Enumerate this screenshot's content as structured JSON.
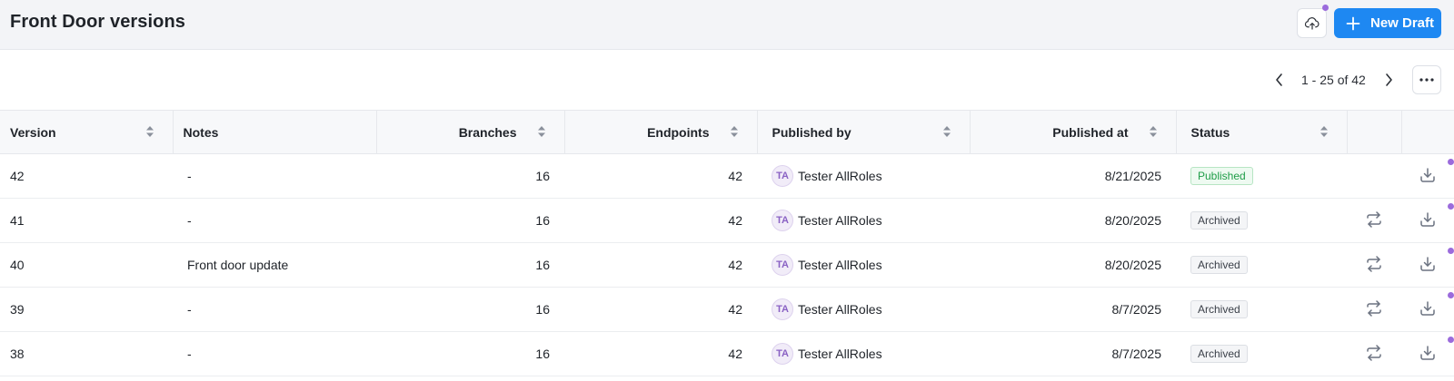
{
  "header": {
    "title": "Front Door versions",
    "new_draft_label": "New Draft",
    "upload_icon": "cloud-upload-icon",
    "accent_color": "#1e88f2",
    "notification_dot_color": "#9b6bdc"
  },
  "pagination": {
    "range_text": "1 - 25 of 42",
    "prev_icon": "chevron-left-icon",
    "next_icon": "chevron-right-icon",
    "more_icon": "more-horizontal-icon"
  },
  "table": {
    "columns": [
      "Version",
      "Notes",
      "Branches",
      "Endpoints",
      "Published by",
      "Published at",
      "Status"
    ],
    "rows": [
      {
        "version": "42",
        "notes": "-",
        "branches": "16",
        "endpoints": "42",
        "initials": "TA",
        "publisher": "Tester AllRoles",
        "published_at": "8/21/2025",
        "status": "Published"
      },
      {
        "version": "41",
        "notes": "-",
        "branches": "16",
        "endpoints": "42",
        "initials": "TA",
        "publisher": "Tester AllRoles",
        "published_at": "8/20/2025",
        "status": "Archived"
      },
      {
        "version": "40",
        "notes": "Front door update",
        "branches": "16",
        "endpoints": "42",
        "initials": "TA",
        "publisher": "Tester AllRoles",
        "published_at": "8/20/2025",
        "status": "Archived"
      },
      {
        "version": "39",
        "notes": "-",
        "branches": "16",
        "endpoints": "42",
        "initials": "TA",
        "publisher": "Tester AllRoles",
        "published_at": "8/7/2025",
        "status": "Archived"
      },
      {
        "version": "38",
        "notes": "-",
        "branches": "16",
        "endpoints": "42",
        "initials": "TA",
        "publisher": "Tester AllRoles",
        "published_at": "8/7/2025",
        "status": "Archived"
      }
    ],
    "status_colors": {
      "Published": "#1f9d48",
      "Archived": "#3b4049"
    }
  }
}
